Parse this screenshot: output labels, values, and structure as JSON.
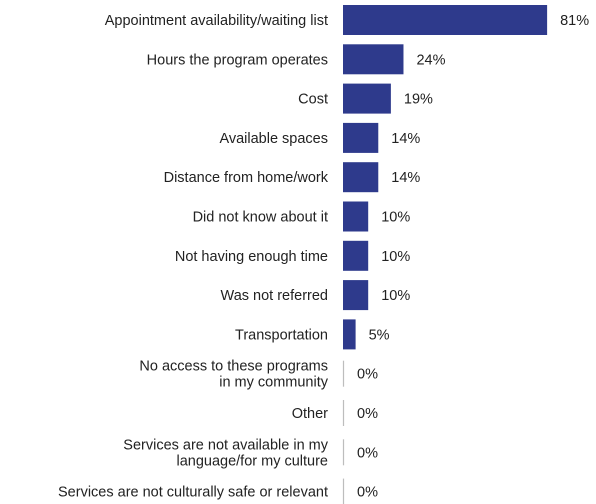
{
  "chart_data": {
    "type": "bar",
    "orientation": "horizontal",
    "title": "",
    "xlabel": "",
    "ylabel": "",
    "xlim": [
      0,
      100
    ],
    "grid": false,
    "bar_color": "#2E3A8C",
    "value_suffix": "%",
    "categories": [
      [
        "Appointment availability/waiting list"
      ],
      [
        "Hours the program operates"
      ],
      [
        "Cost"
      ],
      [
        "Available spaces"
      ],
      [
        "Distance from home/work"
      ],
      [
        "Did not know about it"
      ],
      [
        "Not having enough time"
      ],
      [
        "Was not referred"
      ],
      [
        "Transportation"
      ],
      [
        "No access to these programs",
        "in my community"
      ],
      [
        "Other"
      ],
      [
        "Services are not available in my",
        "language/for my culture"
      ],
      [
        "Services are not culturally safe or relevant"
      ]
    ],
    "values": [
      81,
      24,
      19,
      14,
      14,
      10,
      10,
      10,
      5,
      0,
      0,
      0,
      0
    ],
    "value_labels": [
      "81%",
      "24%",
      "19%",
      "14%",
      "14%",
      "10%",
      "10%",
      "10%",
      "5%",
      "0%",
      "0%",
      "0%",
      "0%"
    ]
  }
}
